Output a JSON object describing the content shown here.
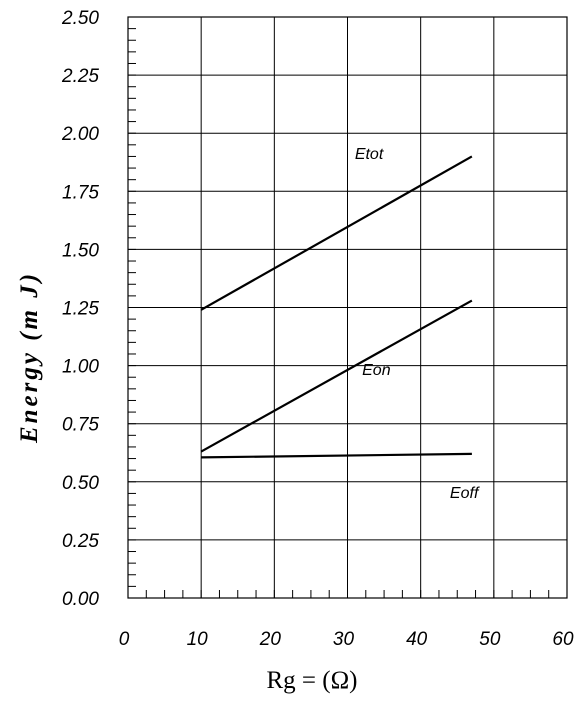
{
  "chart_data": {
    "type": "line",
    "xlabel": "Rg = (Ω)",
    "ylabel": "Energy (m J)",
    "xlim": [
      0,
      60
    ],
    "ylim": [
      0,
      2.5
    ],
    "x_ticks": [
      "0",
      "10",
      "20",
      "30",
      "40",
      "50",
      "60"
    ],
    "y_ticks": [
      "0.00",
      "0.25",
      "0.50",
      "0.75",
      "1.00",
      "1.25",
      "1.50",
      "1.75",
      "2.00",
      "2.25",
      "2.50"
    ],
    "grid": true,
    "series": [
      {
        "name": "Etot",
        "x": [
          10,
          47
        ],
        "y": [
          1.24,
          1.9
        ],
        "label_at": [
          31,
          1.89
        ]
      },
      {
        "name": "Eon",
        "x": [
          10,
          47
        ],
        "y": [
          0.63,
          1.28
        ],
        "label_at": [
          32,
          0.96
        ]
      },
      {
        "name": "Eoff",
        "x": [
          10,
          47
        ],
        "y": [
          0.605,
          0.62
        ],
        "label_at": [
          44,
          0.43
        ]
      }
    ]
  }
}
